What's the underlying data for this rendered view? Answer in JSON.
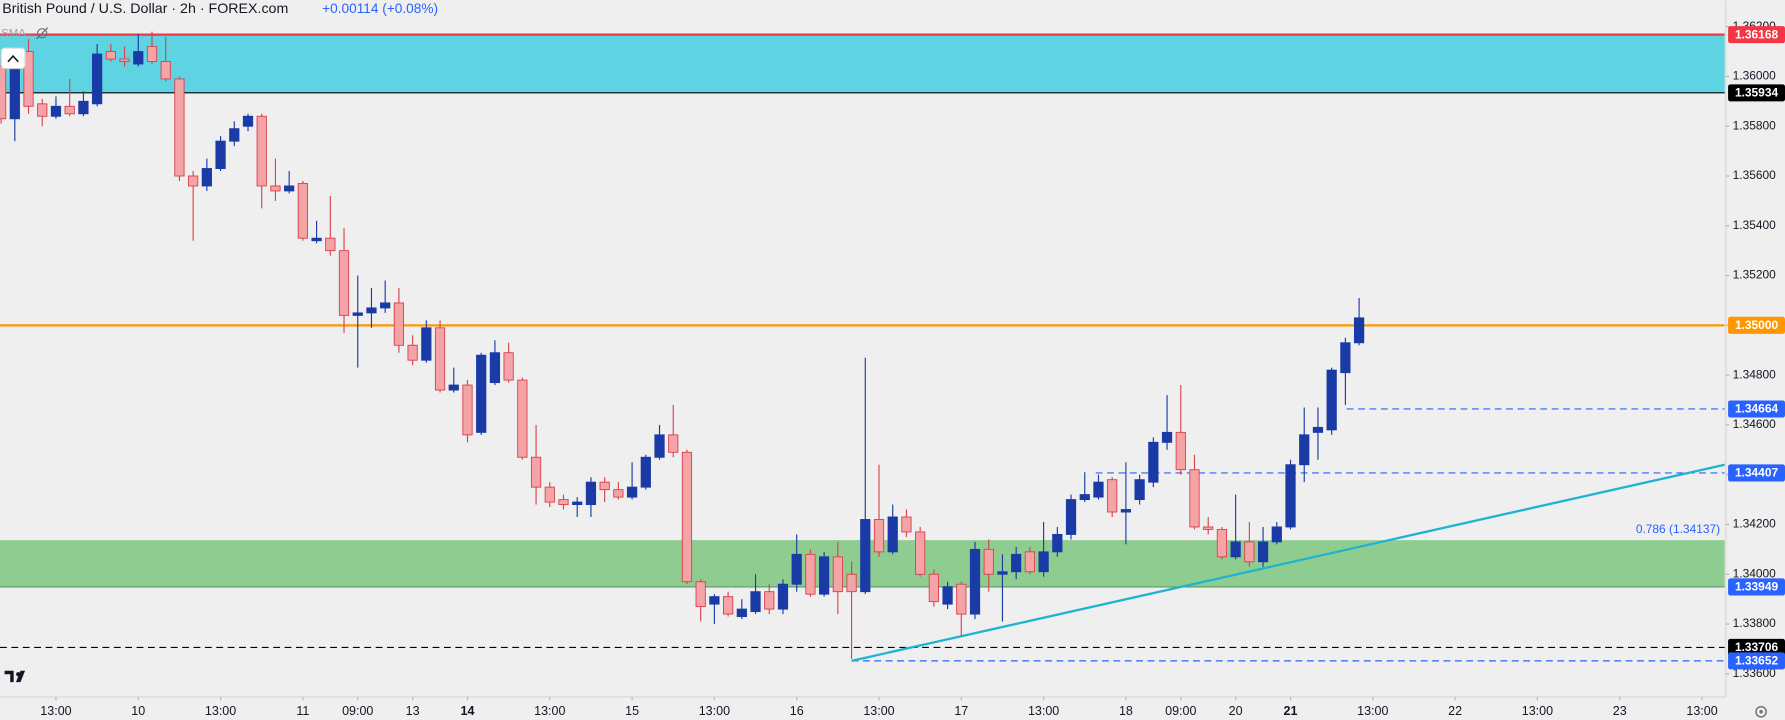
{
  "header": {
    "title": "British Pound / U.S. Dollar · 2h · FOREX.com",
    "change": "+0.00114 (+0.08%)",
    "indicator": "SMA"
  },
  "chart_data": {
    "type": "candlestick",
    "up_color": "#1a3aa6",
    "down_color": "#f4a3a6",
    "down_border": "#d8434b",
    "open": [
      1.3604,
      1.3583,
      1.361,
      1.3589,
      1.3584,
      1.3588,
      1.3585,
      1.3589,
      1.361,
      1.3607,
      1.3605,
      1.3612,
      1.3606,
      1.3599,
      1.356,
      1.3556,
      1.3563,
      1.3574,
      1.358,
      1.3584,
      1.3556,
      1.3554,
      1.3557,
      1.3534,
      1.3535,
      1.353,
      1.3504,
      1.3505,
      1.3507,
      1.3509,
      1.3492,
      1.3486,
      1.3499,
      1.3474,
      1.3476,
      1.3457,
      1.3477,
      1.3489,
      1.3478,
      1.3447,
      1.3435,
      1.343,
      1.3428,
      1.3428,
      1.3437,
      1.3434,
      1.3431,
      1.3435,
      1.3447,
      1.3456,
      1.3449,
      1.3397,
      1.3388,
      1.3391,
      1.3383,
      1.3385,
      1.3393,
      1.3386,
      1.3396,
      1.3408,
      1.3392,
      1.3407,
      1.34,
      1.3393,
      1.3422,
      1.3409,
      1.3423,
      1.3417,
      1.34,
      1.3388,
      1.3396,
      1.3384,
      1.341,
      1.34,
      1.3401,
      1.3409,
      1.3401,
      1.3409,
      1.3416,
      1.343,
      1.3431,
      1.3438,
      1.3425,
      1.343,
      1.3437,
      1.3453,
      1.3457,
      1.3442,
      1.3419,
      1.3418,
      1.3407,
      1.3413,
      1.3405,
      1.3413,
      1.3419,
      1.3444,
      1.3457,
      1.3458,
      1.3481,
      1.3493
    ],
    "high": [
      1.361,
      1.3608,
      1.3615,
      1.3591,
      1.3592,
      1.3599,
      1.3594,
      1.3613,
      1.3613,
      1.3612,
      1.3617,
      1.3618,
      1.3616,
      1.36,
      1.3562,
      1.3567,
      1.3576,
      1.3582,
      1.3585,
      1.3585,
      1.3567,
      1.3562,
      1.3558,
      1.3542,
      1.3552,
      1.3539,
      1.352,
      1.3515,
      1.3518,
      1.3515,
      1.3496,
      1.3502,
      1.3502,
      1.3483,
      1.3478,
      1.3489,
      1.3494,
      1.3493,
      1.3479,
      1.346,
      1.3437,
      1.3432,
      1.3431,
      1.3439,
      1.3439,
      1.3437,
      1.3445,
      1.3448,
      1.346,
      1.3468,
      1.345,
      1.3398,
      1.3392,
      1.3393,
      1.339,
      1.34,
      1.3396,
      1.3398,
      1.3416,
      1.341,
      1.3409,
      1.3413,
      1.3405,
      1.3487,
      1.3444,
      1.3428,
      1.3426,
      1.3419,
      1.3402,
      1.3397,
      1.3397,
      1.3413,
      1.3414,
      1.3408,
      1.3411,
      1.3411,
      1.3421,
      1.3419,
      1.3432,
      1.3441,
      1.344,
      1.3439,
      1.3445,
      1.344,
      1.3455,
      1.3472,
      1.3476,
      1.3448,
      1.3423,
      1.3419,
      1.3432,
      1.3421,
      1.3419,
      1.3421,
      1.3446,
      1.3467,
      1.3467,
      1.3483,
      1.3495,
      1.3511
    ],
    "low": [
      1.3581,
      1.3574,
      1.3585,
      1.358,
      1.3583,
      1.3584,
      1.3584,
      1.3588,
      1.3606,
      1.3604,
      1.3604,
      1.3605,
      1.3598,
      1.3558,
      1.3534,
      1.3554,
      1.3562,
      1.3572,
      1.3578,
      1.3547,
      1.355,
      1.3553,
      1.3534,
      1.3533,
      1.3528,
      1.3497,
      1.3483,
      1.3499,
      1.3505,
      1.3489,
      1.3484,
      1.3485,
      1.3473,
      1.3473,
      1.3453,
      1.3456,
      1.3476,
      1.3477,
      1.3446,
      1.3428,
      1.3427,
      1.3426,
      1.3423,
      1.3423,
      1.3429,
      1.343,
      1.343,
      1.3434,
      1.3446,
      1.3447,
      1.3396,
      1.3381,
      1.338,
      1.3383,
      1.3382,
      1.3384,
      1.3384,
      1.3384,
      1.3393,
      1.3391,
      1.3391,
      1.3384,
      1.3366,
      1.3392,
      1.3407,
      1.3408,
      1.3415,
      1.3399,
      1.3387,
      1.3386,
      1.3375,
      1.3382,
      1.3393,
      1.3381,
      1.3398,
      1.34,
      1.3399,
      1.3407,
      1.3414,
      1.3429,
      1.343,
      1.3423,
      1.3412,
      1.3428,
      1.3435,
      1.345,
      1.344,
      1.3418,
      1.3416,
      1.3406,
      1.3406,
      1.3403,
      1.3403,
      1.3412,
      1.3418,
      1.3437,
      1.3446,
      1.3456,
      1.3468,
      1.3492
    ],
    "close": [
      1.3583,
      1.3604,
      1.3588,
      1.3584,
      1.3588,
      1.3585,
      1.359,
      1.3609,
      1.3607,
      1.3606,
      1.361,
      1.3606,
      1.3599,
      1.356,
      1.3556,
      1.3563,
      1.3574,
      1.3579,
      1.3584,
      1.3556,
      1.3554,
      1.3556,
      1.3535,
      1.3535,
      1.353,
      1.3504,
      1.3505,
      1.3507,
      1.3509,
      1.3492,
      1.3486,
      1.3499,
      1.3474,
      1.3476,
      1.3456,
      1.3488,
      1.3489,
      1.3478,
      1.3447,
      1.3435,
      1.3429,
      1.3428,
      1.3429,
      1.3437,
      1.3434,
      1.3431,
      1.3435,
      1.3447,
      1.3456,
      1.3449,
      1.3397,
      1.3387,
      1.3391,
      1.3384,
      1.3386,
      1.3393,
      1.3386,
      1.3396,
      1.3408,
      1.3392,
      1.3407,
      1.3393,
      1.3393,
      1.3422,
      1.3409,
      1.3423,
      1.3417,
      1.34,
      1.3389,
      1.3395,
      1.3384,
      1.341,
      1.34,
      1.3401,
      1.3408,
      1.3401,
      1.3409,
      1.3416,
      1.343,
      1.3432,
      1.3437,
      1.3425,
      1.3426,
      1.3438,
      1.3453,
      1.3457,
      1.3442,
      1.3419,
      1.3418,
      1.3407,
      1.3413,
      1.3405,
      1.3413,
      1.3419,
      1.3444,
      1.3456,
      1.3459,
      1.3482,
      1.3493,
      1.3503
    ],
    "xlim": [
      -0.08,
      125.65
    ],
    "xticks": [
      {
        "value": 4,
        "label": "13:00"
      },
      {
        "value": 10,
        "label": "10"
      },
      {
        "value": 16,
        "label": "13:00"
      },
      {
        "value": 22,
        "label": "11"
      },
      {
        "value": 26,
        "label": "09:00"
      },
      {
        "value": 30,
        "label": "13"
      },
      {
        "value": 34,
        "label": "14",
        "bold": true
      },
      {
        "value": 40,
        "label": "13:00"
      },
      {
        "value": 46,
        "label": "15"
      },
      {
        "value": 52,
        "label": "13:00"
      },
      {
        "value": 58,
        "label": "16"
      },
      {
        "value": 64,
        "label": "13:00"
      },
      {
        "value": 70,
        "label": "17"
      },
      {
        "value": 76,
        "label": "13:00"
      },
      {
        "value": 82,
        "label": "18"
      },
      {
        "value": 86,
        "label": "09:00"
      },
      {
        "value": 90,
        "label": "20"
      },
      {
        "value": 94,
        "label": "21",
        "bold": true
      },
      {
        "value": 100,
        "label": "13:00"
      },
      {
        "value": 106,
        "label": "22"
      },
      {
        "value": 112,
        "label": "13:00"
      },
      {
        "value": 118,
        "label": "23"
      },
      {
        "value": 124,
        "label": "13:00"
      }
    ],
    "ylim": [
      1.33507,
      1.36306
    ],
    "yticks": [
      {
        "value": 1.336,
        "label": "1.33600"
      },
      {
        "value": 1.338,
        "label": "1.33800"
      },
      {
        "value": 1.34,
        "label": "1.34000"
      },
      {
        "value": 1.342,
        "label": "1.34200"
      },
      {
        "value": 1.344,
        "label": "1.34400"
      },
      {
        "value": 1.346,
        "label": "1.34600"
      },
      {
        "value": 1.348,
        "label": "1.34800"
      },
      {
        "value": 1.35,
        "label": "1.35000"
      },
      {
        "value": 1.352,
        "label": "1.35200"
      },
      {
        "value": 1.354,
        "label": "1.35400"
      },
      {
        "value": 1.356,
        "label": "1.35600"
      },
      {
        "value": 1.358,
        "label": "1.35800"
      },
      {
        "value": 1.36,
        "label": "1.36000"
      },
      {
        "value": 1.362,
        "label": "1.36200"
      }
    ],
    "grid": false,
    "zones": [
      {
        "top": 1.36168,
        "bottom": 1.35934,
        "color": "#5ed3e2"
      },
      {
        "top": 1.34137,
        "bottom": 1.33949,
        "color": "#8fcc8f"
      }
    ],
    "levels": [
      {
        "value": 1.36168,
        "label": "1.36168",
        "color": "#f23645",
        "line": "solid",
        "width": 2
      },
      {
        "value": 1.35934,
        "label": "1.35934",
        "color": "#000000",
        "line": "solid",
        "width": 1
      },
      {
        "value": 1.35,
        "label": "1.35000",
        "color": "#ff9800",
        "line": "solid",
        "width": 2
      },
      {
        "value": 1.34664,
        "label": "1.34664",
        "color": "#2962ff",
        "line": "dashed",
        "width": 1,
        "from": 98.1
      },
      {
        "value": 1.34407,
        "label": "1.34407",
        "color": "#2962ff",
        "line": "dashed",
        "width": 1,
        "from": 79.8
      },
      {
        "value": 1.33949,
        "label": "1.33949",
        "color": "#2962ff",
        "line": "solid",
        "width": 1,
        "line_color": "#5b9a6b"
      },
      {
        "value": 1.33706,
        "label": "1.33706",
        "color": "#000000",
        "line": "dashed",
        "width": 1
      },
      {
        "value": 1.33652,
        "label": "1.33652",
        "color": "#2962ff",
        "line": "dashed",
        "width": 1,
        "from": 62
      }
    ],
    "trendline": {
      "x": [
        62,
        125.65
      ],
      "y": [
        1.33652,
        1.3444
      ],
      "color": "#1fb3cf"
    },
    "annotation": {
      "text": "0.786 (1.34137)",
      "value": 1.34137,
      "color": "#2962ff"
    }
  }
}
